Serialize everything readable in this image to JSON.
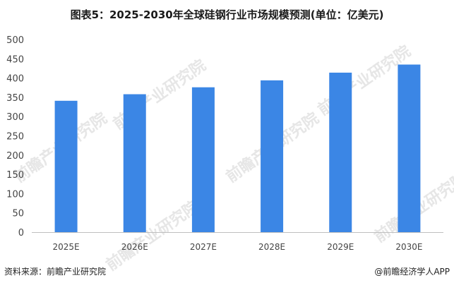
{
  "title": "图表5：2025-2030年全球硅钢行业市场规模预测(单位：亿美元)",
  "footer": {
    "source": "资料来源：前瞻产业研究院",
    "credit": "@前瞻经济学人APP"
  },
  "watermark": {
    "text": "前瞻产业研究院"
  },
  "colors": {
    "bar": "#3B86E5",
    "axis_text": "#444444",
    "axis_line": "#bfbfbf",
    "watermark": "#e6e6e6"
  },
  "chart_data": {
    "type": "bar",
    "title": "图表5：2025-2030年全球硅钢行业市场规模预测(单位：亿美元)",
    "xlabel": "",
    "ylabel": "",
    "categories": [
      "2025E",
      "2026E",
      "2027E",
      "2028E",
      "2029E",
      "2030E"
    ],
    "values": [
      341,
      358,
      376,
      394,
      414,
      435
    ],
    "ylim": [
      0,
      500
    ],
    "yticks": [
      0,
      50,
      100,
      150,
      200,
      250,
      300,
      350,
      400,
      450,
      500
    ],
    "grid": false,
    "legend": "none"
  }
}
